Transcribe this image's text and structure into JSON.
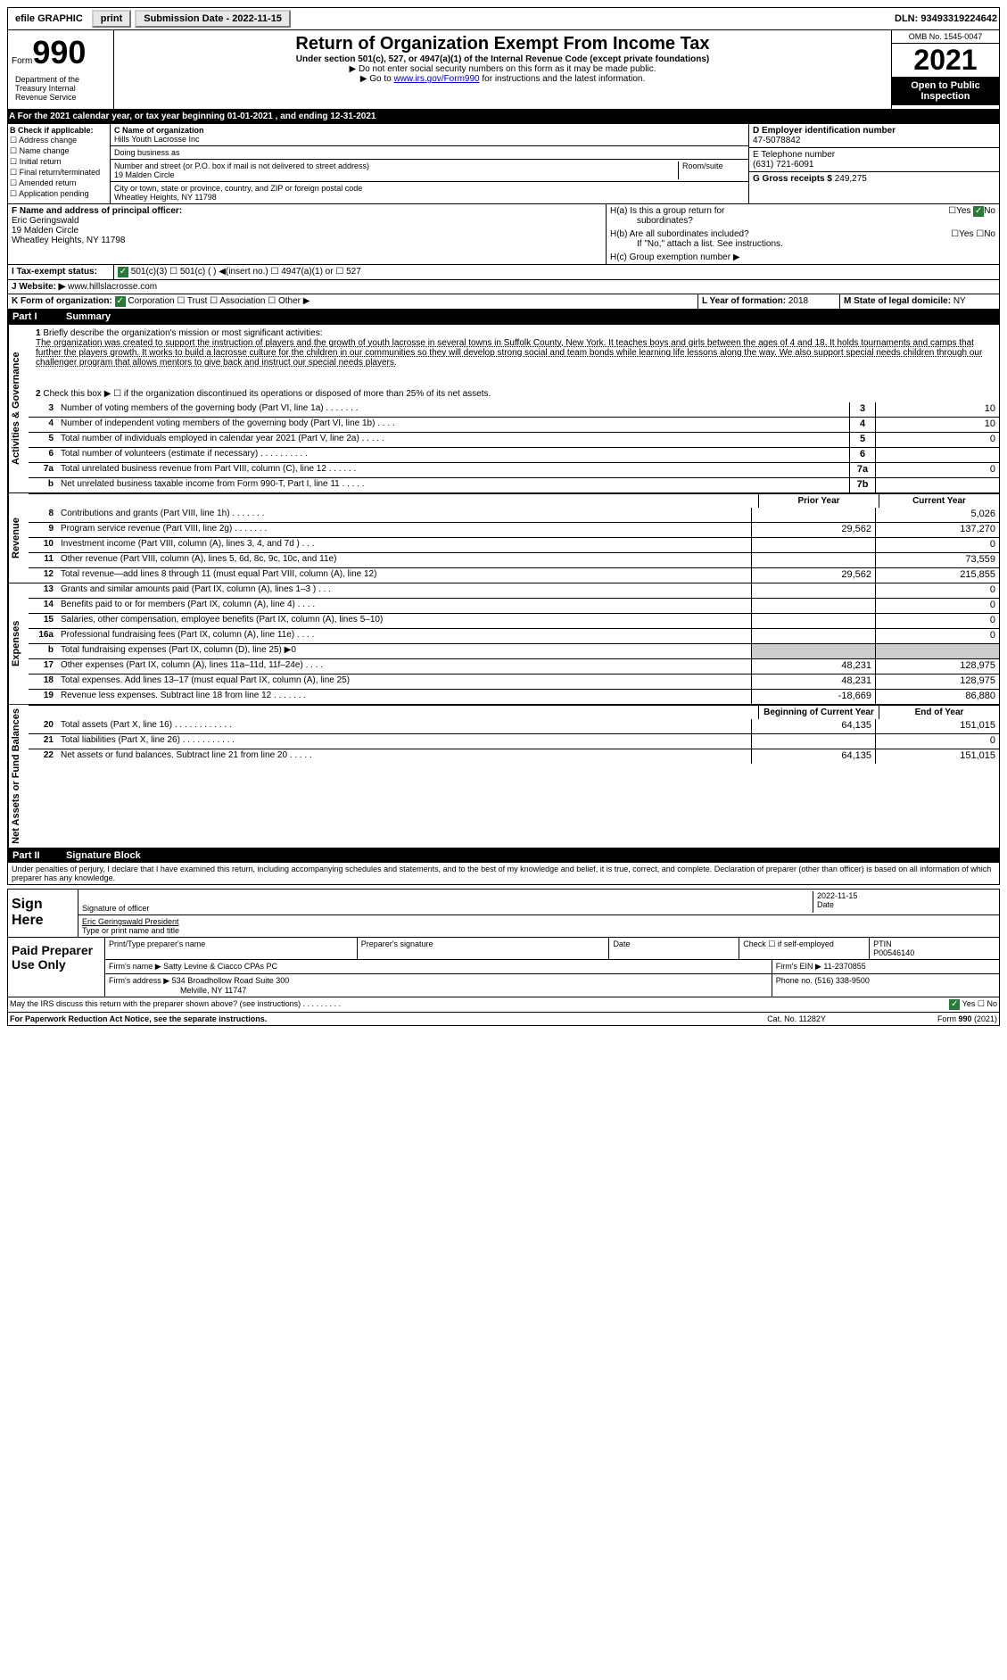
{
  "top_bar": {
    "efile_label": "efile GRAPHIC",
    "print_btn": "print",
    "submission_label": "Submission Date - 2022-11-15",
    "dln_label": "DLN: 93493319224642"
  },
  "header": {
    "form_label": "Form",
    "form_num": "990",
    "main_title": "Return of Organization Exempt From Income Tax",
    "sub_title": "Under section 501(c), 527, or 4947(a)(1) of the Internal Revenue Code (except private foundations)",
    "instr1": "▶ Do not enter social security numbers on this form as it may be made public.",
    "instr2_pre": "▶ Go to ",
    "instr2_link": "www.irs.gov/Form990",
    "instr2_post": " for instructions and the latest information.",
    "omb": "OMB No. 1545-0047",
    "year": "2021",
    "open_inspection": "Open to Public Inspection",
    "dept": "Department of the Treasury Internal Revenue Service"
  },
  "row_a": "A For the 2021 calendar year, or tax year beginning 01-01-2021   , and ending 12-31-2021",
  "box_b": {
    "label": "B Check if applicable:",
    "items": [
      "☐ Address change",
      "☐ Name change",
      "☐ Initial return",
      "☐ Final return/terminated",
      "☐ Amended return",
      "☐ Application pending"
    ]
  },
  "box_c": {
    "name_label": "C Name of organization",
    "name": "Hills Youth Lacrosse Inc",
    "dba_label": "Doing business as",
    "dba": "",
    "addr_label": "Number and street (or P.O. box if mail is not delivered to street address)",
    "room_label": "Room/suite",
    "addr": "19 Malden Circle",
    "city_label": "City or town, state or province, country, and ZIP or foreign postal code",
    "city": "Wheatley Heights, NY  11798"
  },
  "box_d": {
    "label": "D Employer identification number",
    "value": "47-5078842"
  },
  "box_e": {
    "label": "E Telephone number",
    "value": "(631) 721-6091"
  },
  "box_g": {
    "label": "G Gross receipts $",
    "value": "249,275"
  },
  "box_f": {
    "label": "F  Name and address of principal officer:",
    "name": "Eric Geringswald",
    "addr1": "19 Malden Circle",
    "addr2": "Wheatley Heights, NY  11798"
  },
  "box_h": {
    "h_a": "H(a)  Is this a group return for",
    "h_a2": "subordinates?",
    "h_b": "H(b)  Are all subordinates included?",
    "h_b_note": "If \"No,\" attach a list. See instructions.",
    "h_c": "H(c)  Group exemption number ▶",
    "yes": "Yes",
    "no": "No"
  },
  "box_i": {
    "label": "I   Tax-exempt status:",
    "opts": "501(c)(3)     ☐   501(c) (  ) ◀(insert no.)     ☐  4947(a)(1) or   ☐  527"
  },
  "box_j": {
    "label": "J   Website: ▶",
    "value": "www.hillslacrosse.com"
  },
  "box_k": {
    "label": "K Form of organization:",
    "opts": "Corporation  ☐  Trust  ☐  Association  ☐  Other ▶"
  },
  "box_l": {
    "label": "L Year of formation:",
    "value": "2018"
  },
  "box_m": {
    "label": "M State of legal domicile:",
    "value": "NY"
  },
  "part1": {
    "label": "Part I",
    "title": "Summary"
  },
  "summary": {
    "line1_label": "1",
    "line1_text": "Briefly describe the organization's mission or most significant activities:",
    "line1_body": "The organization was created to support the instruction of players and the growth of youth lacrosse in several towns in Suffolk County, New York. It teaches boys and girls between the ages of 4 and 18. It holds tournaments and camps that further the players growth. It works to build a lacrosse culture for the children in our communities so they will develop strong social and team bonds while learning life lessons along the way. We also support special needs children through our challenger program that allows mentors to give back and instruct our special needs players.",
    "line2": "Check this box ▶ ☐  if the organization discontinued its operations or disposed of more than 25% of its net assets.",
    "side_gov": "Activities & Governance",
    "side_rev": "Revenue",
    "side_exp": "Expenses",
    "side_net": "Net Assets or Fund Balances",
    "rows_gov": [
      {
        "n": "3",
        "t": "Number of voting members of the governing body (Part VI, line 1a)   .    .    .    .    .    .    .",
        "box": "3",
        "v": "10"
      },
      {
        "n": "4",
        "t": "Number of independent voting members of the governing body (Part VI, line 1b)   .    .    .    .",
        "box": "4",
        "v": "10"
      },
      {
        "n": "5",
        "t": "Total number of individuals employed in calendar year 2021 (Part V, line 2a)   .    .    .    .    .",
        "box": "5",
        "v": "0"
      },
      {
        "n": "6",
        "t": "Total number of volunteers (estimate if necessary)   .    .    .    .    .    .    .    .    .    .",
        "box": "6",
        "v": ""
      },
      {
        "n": "7a",
        "t": "Total unrelated business revenue from Part VIII, column (C), line 12   .    .    .    .    .    .",
        "box": "7a",
        "v": "0"
      },
      {
        "n": "b",
        "t": "Net unrelated business taxable income from Form 990-T, Part I, line 11   .    .    .    .    .",
        "box": "7b",
        "v": ""
      }
    ],
    "hdr_prior": "Prior Year",
    "hdr_current": "Current Year",
    "rows_rev": [
      {
        "n": "8",
        "t": "Contributions and grants (Part VIII, line 1h)   .    .    .    .    .    .    .",
        "p": "",
        "c": "5,026"
      },
      {
        "n": "9",
        "t": "Program service revenue (Part VIII, line 2g)   .    .    .    .    .    .    .",
        "p": "29,562",
        "c": "137,270"
      },
      {
        "n": "10",
        "t": "Investment income (Part VIII, column (A), lines 3, 4, and 7d )   .    .    .",
        "p": "",
        "c": "0"
      },
      {
        "n": "11",
        "t": "Other revenue (Part VIII, column (A), lines 5, 6d, 8c, 9c, 10c, and 11e)",
        "p": "",
        "c": "73,559"
      },
      {
        "n": "12",
        "t": "Total revenue—add lines 8 through 11 (must equal Part VIII, column (A), line 12)",
        "p": "29,562",
        "c": "215,855"
      }
    ],
    "rows_exp": [
      {
        "n": "13",
        "t": "Grants and similar amounts paid (Part IX, column (A), lines 1–3 )   .    .    .",
        "p": "",
        "c": "0"
      },
      {
        "n": "14",
        "t": "Benefits paid to or for members (Part IX, column (A), line 4)   .    .    .    .",
        "p": "",
        "c": "0"
      },
      {
        "n": "15",
        "t": "Salaries, other compensation, employee benefits (Part IX, column (A), lines 5–10)",
        "p": "",
        "c": "0"
      },
      {
        "n": "16a",
        "t": "Professional fundraising fees (Part IX, column (A), line 11e)   .    .    .    .",
        "p": "",
        "c": "0"
      },
      {
        "n": "b",
        "t": "Total fundraising expenses (Part IX, column (D), line 25) ▶0",
        "p": "SHADED",
        "c": "SHADED"
      },
      {
        "n": "17",
        "t": "Other expenses (Part IX, column (A), lines 11a–11d, 11f–24e)   .    .    .    .",
        "p": "48,231",
        "c": "128,975"
      },
      {
        "n": "18",
        "t": "Total expenses. Add lines 13–17 (must equal Part IX, column (A), line 25)",
        "p": "48,231",
        "c": "128,975"
      },
      {
        "n": "19",
        "t": "Revenue less expenses. Subtract line 18 from line 12   .    .    .    .    .    .    .",
        "p": "-18,669",
        "c": "86,880"
      }
    ],
    "hdr_beg": "Beginning of Current Year",
    "hdr_end": "End of Year",
    "rows_net": [
      {
        "n": "20",
        "t": "Total assets (Part X, line 16)   .    .    .    .    .    .    .    .    .    .    .    .",
        "p": "64,135",
        "c": "151,015"
      },
      {
        "n": "21",
        "t": "Total liabilities (Part X, line 26)   .    .    .    .    .    .    .    .    .    .    .",
        "p": "",
        "c": "0"
      },
      {
        "n": "22",
        "t": "Net assets or fund balances. Subtract line 21 from line 20   .    .    .    .    .",
        "p": "64,135",
        "c": "151,015"
      }
    ]
  },
  "part2": {
    "label": "Part II",
    "title": "Signature Block"
  },
  "sig": {
    "perjury": "Under penalties of perjury, I declare that I have examined this return, including accompanying schedules and statements, and to the best of my knowledge and belief, it is true, correct, and complete. Declaration of preparer (other than officer) is based on all information of which preparer has any knowledge.",
    "sign_here": "Sign Here",
    "sig_officer_label": "Signature of officer",
    "date_label": "Date",
    "date_value": "2022-11-15",
    "name_title": "Eric Geringswald  President",
    "type_label": "Type or print name and title"
  },
  "prep": {
    "left": "Paid Preparer Use Only",
    "h1": "Print/Type preparer's name",
    "h2": "Preparer's signature",
    "h3": "Date",
    "h4": "Check ☐ if self-employed",
    "h5": "PTIN",
    "ptin": "P00546140",
    "firm_name_label": "Firm's name     ▶",
    "firm_name": "Satty Levine & Ciacco CPAs PC",
    "ein_label": "Firm's EIN ▶",
    "ein": "11-2370855",
    "addr_label": "Firm's address ▶",
    "addr1": "534 Broadhollow Road Suite 300",
    "addr2": "Melville, NY  11747",
    "phone_label": "Phone no.",
    "phone": "(516) 338-9500"
  },
  "footer": {
    "discuss": "May the IRS discuss this return with the preparer shown above? (see instructions)   .    .    .    .    .    .    .    .    .",
    "yes": "Yes",
    "no": "No",
    "paperwork": "For Paperwork Reduction Act Notice, see the separate instructions.",
    "cat": "Cat. No. 11282Y",
    "form": "Form 990 (2021)"
  }
}
